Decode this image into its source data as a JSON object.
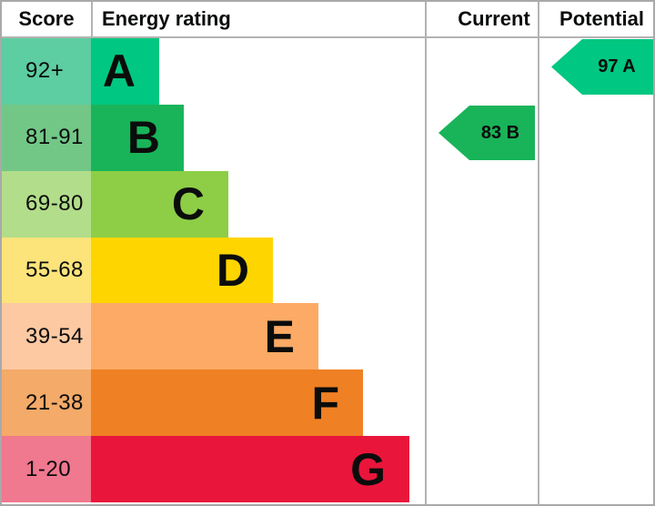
{
  "header": {
    "score": "Score",
    "energy_rating": "Energy rating",
    "current": "Current",
    "potential": "Potential"
  },
  "bands": [
    {
      "letter": "A",
      "score": "92+",
      "bar_color": "#00c781",
      "score_bg": "#5dcda2"
    },
    {
      "letter": "B",
      "score": "81-91",
      "bar_color": "#19b459",
      "score_bg": "#72c787"
    },
    {
      "letter": "C",
      "score": "69-80",
      "bar_color": "#8dce46",
      "score_bg": "#b2dd8a"
    },
    {
      "letter": "D",
      "score": "55-68",
      "bar_color": "#ffd500",
      "score_bg": "#fce47b"
    },
    {
      "letter": "E",
      "score": "39-54",
      "bar_color": "#fcaa65",
      "score_bg": "#fcc9a2"
    },
    {
      "letter": "F",
      "score": "21-38",
      "bar_color": "#ef8023",
      "score_bg": "#f4aa68"
    },
    {
      "letter": "G",
      "score": "1-20",
      "bar_color": "#e9153b",
      "score_bg": "#f0788f"
    }
  ],
  "current": {
    "label": "83 B",
    "color": "#19b459"
  },
  "potential": {
    "label": "97 A",
    "color": "#00c781"
  },
  "chart_data": {
    "type": "bar",
    "title": "Energy rating",
    "categories": [
      "A",
      "B",
      "C",
      "D",
      "E",
      "F",
      "G"
    ],
    "score_ranges": [
      "92+",
      "81-91",
      "69-80",
      "55-68",
      "39-54",
      "21-38",
      "1-20"
    ],
    "band_colors": [
      "#00c781",
      "#19b459",
      "#8dce46",
      "#ffd500",
      "#fcaa65",
      "#ef8023",
      "#e9153b"
    ],
    "series": [
      {
        "name": "Current",
        "score": 83,
        "band": "B"
      },
      {
        "name": "Potential",
        "score": 97,
        "band": "A"
      }
    ],
    "columns": [
      "Score",
      "Energy rating",
      "Current",
      "Potential"
    ],
    "layout": "horizontal stepped EPC band chart, arrows mark current and potential ratings"
  }
}
